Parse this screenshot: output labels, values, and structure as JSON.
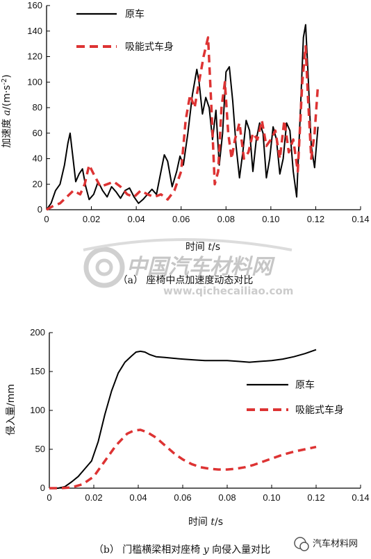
{
  "chart_data": [
    {
      "type": "line",
      "ylabel_prefix": "加速度 ",
      "ylabel_symbol": "a",
      "ylabel_unit": "/(m·s",
      "ylabel_exp": "-2",
      "ylabel_close": ")",
      "xlabel_prefix": "时间 ",
      "xlabel_symbol": "t",
      "xlabel_unit": "/s",
      "caption": "（a） 座椅中点加速度动态对比",
      "xlim": [
        0,
        0.14
      ],
      "ylim": [
        0,
        160
      ],
      "xticks": [
        "0",
        "0.02",
        "0.04",
        "0.06",
        "0.08",
        "0.10",
        "0.12",
        "0.14"
      ],
      "yticks": [
        "0",
        "20",
        "40",
        "60",
        "80",
        "100",
        "120",
        "140",
        "160"
      ],
      "legend_position": "top-left",
      "series": [
        {
          "name": "原车",
          "style": "solid",
          "color": "#000000",
          "x": [
            0,
            0.002,
            0.004,
            0.006,
            0.008,
            0.0095,
            0.0105,
            0.0115,
            0.013,
            0.0145,
            0.016,
            0.0175,
            0.019,
            0.021,
            0.023,
            0.025,
            0.027,
            0.029,
            0.031,
            0.033,
            0.035,
            0.037,
            0.039,
            0.041,
            0.043,
            0.045,
            0.047,
            0.049,
            0.051,
            0.0525,
            0.054,
            0.056,
            0.058,
            0.0595,
            0.061,
            0.063,
            0.065,
            0.067,
            0.068,
            0.0695,
            0.071,
            0.0725,
            0.074,
            0.0755,
            0.077,
            0.0785,
            0.08,
            0.0815,
            0.083,
            0.0845,
            0.086,
            0.0875,
            0.089,
            0.0905,
            0.092,
            0.0935,
            0.095,
            0.0965,
            0.098,
            0.0995,
            0.101,
            0.1025,
            0.104,
            0.1055,
            0.107,
            0.1085,
            0.11,
            0.1115,
            0.113,
            0.1145,
            0.1155,
            0.1165,
            0.118,
            0.1195,
            0.121
          ],
          "y": [
            0,
            5,
            15,
            20,
            35,
            52,
            60,
            45,
            22,
            28,
            32,
            18,
            8,
            12,
            22,
            15,
            10,
            18,
            14,
            9,
            15,
            17,
            10,
            5,
            8,
            12,
            16,
            12,
            30,
            43,
            38,
            18,
            30,
            42,
            35,
            60,
            90,
            110,
            100,
            75,
            88,
            80,
            55,
            78,
            35,
            60,
            108,
            112,
            85,
            50,
            25,
            45,
            70,
            62,
            30,
            55,
            68,
            60,
            25,
            40,
            65,
            55,
            28,
            40,
            68,
            62,
            30,
            10,
            70,
            135,
            145,
            110,
            50,
            33,
            65
          ]
        },
        {
          "name": "吸能式车身",
          "style": "dashed",
          "color": "#dd3333",
          "x": [
            0,
            0.003,
            0.006,
            0.009,
            0.012,
            0.015,
            0.017,
            0.019,
            0.021,
            0.024,
            0.027,
            0.03,
            0.033,
            0.036,
            0.039,
            0.042,
            0.045,
            0.048,
            0.051,
            0.054,
            0.057,
            0.06,
            0.062,
            0.064,
            0.066,
            0.068,
            0.07,
            0.072,
            0.0735,
            0.075,
            0.0765,
            0.078,
            0.0795,
            0.081,
            0.0825,
            0.084,
            0.086,
            0.088,
            0.09,
            0.092,
            0.094,
            0.096,
            0.098,
            0.1,
            0.102,
            0.104,
            0.106,
            0.108,
            0.11,
            0.112,
            0.114,
            0.1155,
            0.1165,
            0.118,
            0.1195,
            0.121
          ],
          "y": [
            0,
            3,
            5,
            10,
            15,
            12,
            20,
            35,
            28,
            18,
            20,
            22,
            18,
            12,
            10,
            15,
            12,
            10,
            12,
            8,
            15,
            30,
            70,
            90,
            80,
            100,
            120,
            135,
            80,
            20,
            30,
            80,
            100,
            60,
            40,
            55,
            68,
            40,
            45,
            60,
            55,
            70,
            50,
            55,
            62,
            40,
            70,
            45,
            55,
            30,
            100,
            128,
            90,
            40,
            60,
            98
          ]
        }
      ]
    },
    {
      "type": "line",
      "ylabel": "侵入量/mm",
      "xlabel_prefix": "时间 ",
      "xlabel_symbol": "t",
      "xlabel_unit": "/s",
      "caption_pre": "（b） 门槛横梁相对座椅 ",
      "caption_symbol": "y",
      "caption_post": " 向侵入量对比",
      "xlim": [
        0,
        0.14
      ],
      "ylim": [
        0,
        200
      ],
      "xticks": [
        "0",
        "0.02",
        "0.04",
        "0.06",
        "0.08",
        "0.10",
        "0.12",
        "0.14"
      ],
      "yticks": [
        "0",
        "50",
        "100",
        "150",
        "200"
      ],
      "legend_position": "right",
      "series": [
        {
          "name": "原车",
          "style": "solid",
          "color": "#000000",
          "x": [
            0,
            0.004,
            0.007,
            0.01,
            0.013,
            0.016,
            0.019,
            0.022,
            0.025,
            0.028,
            0.031,
            0.034,
            0.037,
            0.039,
            0.041,
            0.043,
            0.045,
            0.048,
            0.052,
            0.056,
            0.06,
            0.065,
            0.07,
            0.075,
            0.08,
            0.085,
            0.09,
            0.095,
            0.1,
            0.105,
            0.11,
            0.115,
            0.12
          ],
          "y": [
            0,
            0,
            2,
            8,
            15,
            25,
            35,
            60,
            95,
            125,
            148,
            162,
            170,
            175,
            176,
            175,
            172,
            169,
            168,
            167,
            166,
            165,
            164,
            164,
            164,
            163,
            162,
            163,
            164,
            166,
            169,
            173,
            178
          ]
        },
        {
          "name": "吸能式车身",
          "style": "dashed",
          "color": "#dd3333",
          "x": [
            0,
            0.005,
            0.01,
            0.015,
            0.02,
            0.025,
            0.03,
            0.035,
            0.038,
            0.041,
            0.044,
            0.048,
            0.052,
            0.056,
            0.06,
            0.064,
            0.068,
            0.072,
            0.076,
            0.08,
            0.084,
            0.088,
            0.092,
            0.096,
            0.1,
            0.105,
            0.11,
            0.115,
            0.12
          ],
          "y": [
            0,
            0,
            1,
            5,
            15,
            35,
            55,
            70,
            74,
            75,
            72,
            65,
            55,
            45,
            37,
            31,
            27,
            25,
            24,
            24,
            25,
            27,
            30,
            34,
            38,
            43,
            47,
            50,
            53
          ]
        }
      ]
    }
  ],
  "watermark": {
    "title": "中国汽车材料网",
    "url": "www.qichecailiao.com"
  },
  "branding": {
    "account": "汽车材料网"
  }
}
